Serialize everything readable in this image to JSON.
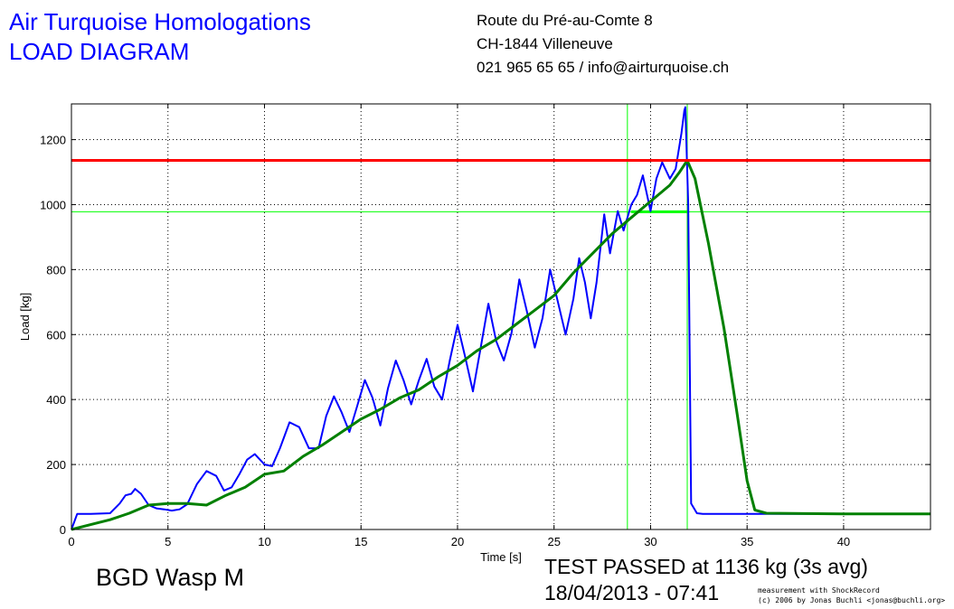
{
  "header": {
    "company": "Air Turquoise Homologations",
    "diagram_title": "LOAD DIAGRAM",
    "address_line1": "Route du Pré-au-Comte 8",
    "address_line2": "CH-1844 Villeneuve",
    "contact": "021 965 65 65 / info@airturquoise.ch"
  },
  "footer": {
    "model": "BGD Wasp M",
    "result": "TEST PASSED at 1136 kg (3s avg)",
    "datetime": "18/04/2013 - 07:41",
    "credit_line1": "measurement with ShockRecord",
    "credit_line2": "(c) 2006 by Jonas Buchli <jonas@buchli.org>"
  },
  "colors": {
    "raw": "#0000ff",
    "avg": "#008000",
    "threshold": "#ff0000",
    "marker": "#00ff00"
  },
  "chart_data": {
    "type": "line",
    "xlabel": "Time [s]",
    "ylabel": "Load [kg]",
    "xlim": [
      0,
      44.5
    ],
    "ylim": [
      0,
      1310
    ],
    "xticks": [
      0,
      5,
      10,
      15,
      20,
      25,
      30,
      35,
      40
    ],
    "yticks": [
      0,
      200,
      400,
      600,
      800,
      1000,
      1200
    ],
    "grid": true,
    "threshold_load": 1136,
    "marker_load": 978,
    "marker_times": [
      28.8,
      31.9
    ],
    "plateau": {
      "x": [
        29.0,
        31.9
      ],
      "y": [
        978,
        978
      ]
    },
    "series": [
      {
        "color": "#0000ff",
        "x": [
          0,
          0.3,
          0.6,
          1.0,
          2.0,
          2.5,
          2.8,
          3.1,
          3.3,
          3.6,
          4.0,
          4.4,
          4.8,
          5.2,
          5.6,
          6.0,
          6.5,
          7.0,
          7.5,
          7.9,
          8.3,
          8.7,
          9.1,
          9.5,
          10.0,
          10.4,
          10.8,
          11.3,
          11.8,
          12.3,
          12.8,
          13.2,
          13.6,
          14.0,
          14.4,
          14.8,
          15.2,
          15.6,
          16.0,
          16.4,
          16.8,
          17.2,
          17.6,
          18.0,
          18.4,
          18.8,
          19.2,
          19.6,
          20.0,
          20.4,
          20.8,
          21.2,
          21.6,
          22.0,
          22.4,
          22.8,
          23.2,
          23.6,
          24.0,
          24.4,
          24.8,
          25.2,
          25.6,
          26.0,
          26.3,
          26.6,
          26.9,
          27.2,
          27.6,
          27.9,
          28.3,
          28.6,
          29.0,
          29.3,
          29.6,
          30.0,
          30.3,
          30.6,
          31.0,
          31.3,
          31.6,
          31.75,
          31.8,
          31.95,
          32.1,
          32.4,
          32.7,
          34.0,
          38.0,
          44.5
        ],
        "y": [
          0,
          48,
          48,
          48,
          50,
          80,
          105,
          110,
          125,
          110,
          75,
          65,
          62,
          58,
          62,
          78,
          140,
          180,
          165,
          120,
          130,
          170,
          215,
          232,
          200,
          195,
          250,
          330,
          315,
          250,
          250,
          350,
          410,
          360,
          300,
          380,
          460,
          405,
          320,
          435,
          520,
          460,
          385,
          460,
          525,
          440,
          400,
          520,
          630,
          530,
          425,
          560,
          695,
          580,
          520,
          605,
          770,
          670,
          560,
          650,
          800,
          700,
          600,
          710,
          835,
          760,
          650,
          760,
          970,
          850,
          980,
          920,
          1000,
          1030,
          1090,
          980,
          1080,
          1130,
          1080,
          1110,
          1220,
          1290,
          1300,
          1000,
          80,
          50,
          48,
          48,
          48,
          48
        ]
      },
      {
        "color": "#008000",
        "x": [
          0,
          1.0,
          2.0,
          3.0,
          4.0,
          5.0,
          6.0,
          7.0,
          8.0,
          9.0,
          10.0,
          11.0,
          12.0,
          13.0,
          14.0,
          15.0,
          16.0,
          17.0,
          18.0,
          19.0,
          20.0,
          21.0,
          22.0,
          23.0,
          24.0,
          25.0,
          26.0,
          27.0,
          28.0,
          29.0,
          30.0,
          31.0,
          31.5,
          31.9,
          32.3,
          33.0,
          33.8,
          34.5,
          35.0,
          35.4,
          36.0,
          40.0,
          44.5
        ],
        "y": [
          0,
          15,
          30,
          50,
          75,
          80,
          80,
          75,
          105,
          130,
          170,
          180,
          225,
          260,
          300,
          340,
          370,
          405,
          430,
          470,
          505,
          550,
          585,
          630,
          675,
          720,
          790,
          850,
          910,
          960,
          1010,
          1060,
          1100,
          1136,
          1080,
          880,
          620,
          350,
          150,
          60,
          50,
          48,
          48
        ]
      }
    ]
  }
}
